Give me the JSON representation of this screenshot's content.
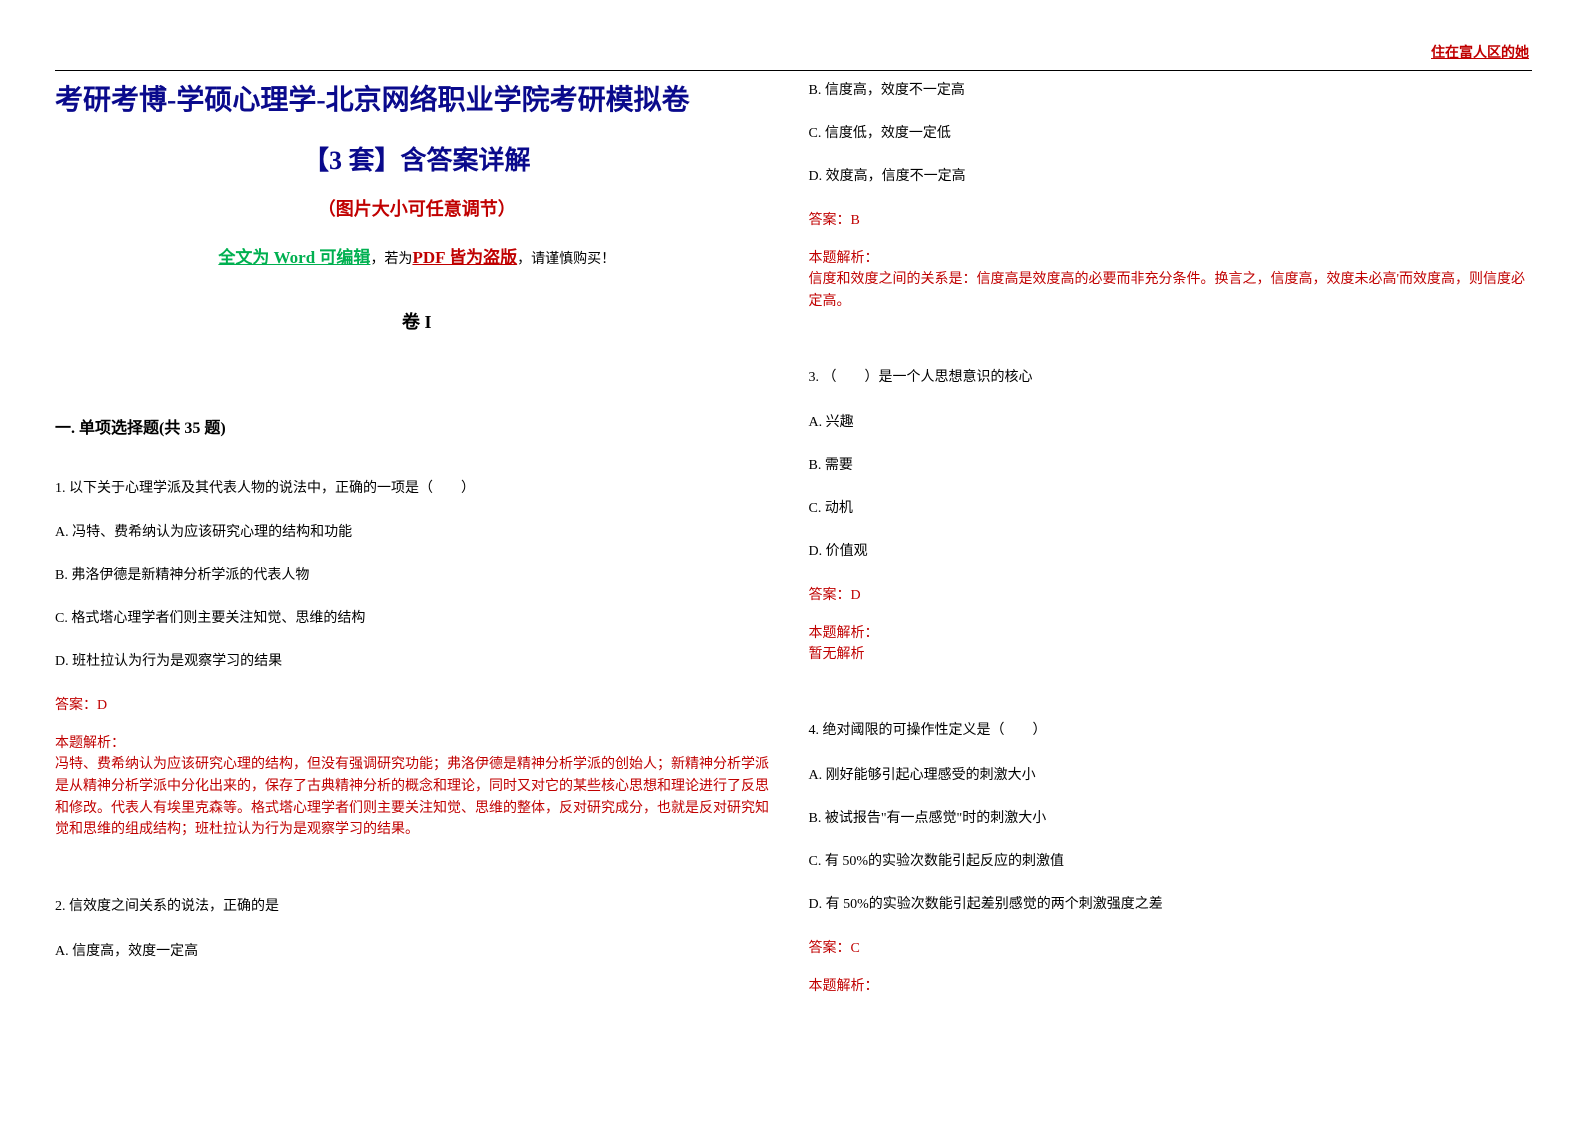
{
  "header": {
    "right_text": "住在富人区的她"
  },
  "titles": {
    "main": "考研考博-学硕心理学-北京网络职业学院考研模拟卷",
    "sub": "【3 套】含答案详解",
    "note": "（图片大小可任意调节）",
    "warn_prefix": "全文为 Word 可编辑",
    "warn_mid1": "，若为",
    "warn_pdf": "PDF 皆为盗版",
    "warn_suffix": "，请谨慎购买！",
    "volume": "卷 I"
  },
  "section": {
    "heading": "一. 单项选择题(共 35 题)"
  },
  "q1": {
    "stem": "1. 以下关于心理学派及其代表人物的说法中，正确的一项是（　　）",
    "optA": "A. 冯特、费希纳认为应该研究心理的结构和功能",
    "optB": "B. 弗洛伊德是新精神分析学派的代表人物",
    "optC": "C. 格式塔心理学者们则主要关注知觉、思维的结构",
    "optD": "D. 班杜拉认为行为是观察学习的结果",
    "answer": "答案：D",
    "explain_label": "本题解析：",
    "explain": "冯特、费希纳认为应该研究心理的结构，但没有强调研究功能；弗洛伊德是精神分析学派的创始人；新精神分析学派是从精神分析学派中分化出来的，保存了古典精神分析的概念和理论，同时又对它的某些核心思想和理论进行了反思和修改。代表人有埃里克森等。格式塔心理学者们则主要关注知觉、思维的整体，反对研究成分，也就是反对研究知觉和思维的组成结构；班杜拉认为行为是观察学习的结果。"
  },
  "q2": {
    "stem": "2.  信效度之间关系的说法，正确的是",
    "optA": "A. 信度高，效度一定高",
    "optB": "B. 信度高，效度不一定高",
    "optC": "C. 信度低，效度一定低",
    "optD": "D. 效度高，信度不一定高",
    "answer": "答案：B",
    "explain_label": "本题解析：",
    "explain": "信度和效度之间的关系是：信度高是效度高的必要而非充分条件。换言之，信度高，效度未必高'而效度高，则信度必定高。"
  },
  "q3": {
    "stem": "3. （　　）是一个人思想意识的核心",
    "optA": "A. 兴趣",
    "optB": "B. 需要",
    "optC": "C. 动机",
    "optD": "D. 价值观",
    "answer": "答案：D",
    "explain_label": "本题解析：",
    "explain": "暂无解析"
  },
  "q4": {
    "stem": "4. 绝对阈限的可操作性定义是（　　）",
    "optA": "A. 刚好能够引起心理感受的刺激大小",
    "optB": "B. 被试报告\"有一点感觉\"时的刺激大小",
    "optC": "C. 有 50%的实验次数能引起反应的刺激值",
    "optD": "D. 有 50%的实验次数能引起差别感觉的两个刺激强度之差",
    "answer": "答案：C",
    "explain_label": "本题解析："
  },
  "colors": {
    "blue": "#0a0a8c",
    "red": "#c00000",
    "green": "#00b050",
    "black": "#000000"
  }
}
